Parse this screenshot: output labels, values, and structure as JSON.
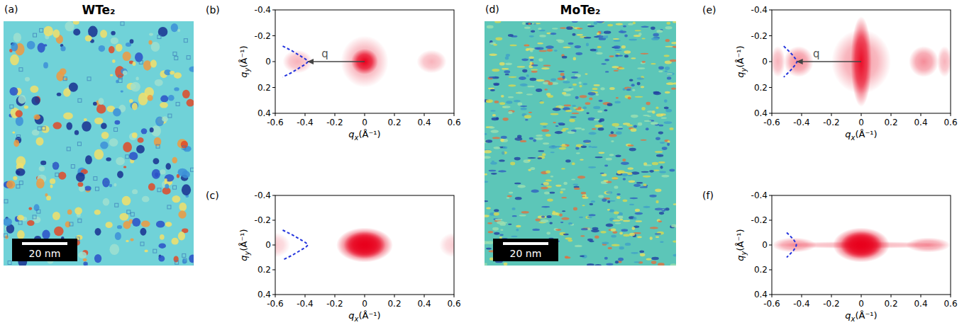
{
  "chart_data": [
    {
      "type": "image",
      "panel": "(a)",
      "title": "WTe₂",
      "scale_bar_label": "20 nm"
    },
    {
      "type": "heatmap",
      "panel": "(b)",
      "xlabel": "qx(Å⁻¹)",
      "ylabel": "qy(Å⁻¹)",
      "xlim": [
        -0.6,
        0.6
      ],
      "ylim": [
        0.4,
        -0.4
      ],
      "xticks": [
        -0.6,
        -0.4,
        -0.2,
        0,
        0.2,
        0.4,
        0.6
      ],
      "yticks": [
        -0.4,
        -0.2,
        0,
        0.2,
        0.4
      ],
      "spots": [
        {
          "x": 0,
          "y": 0,
          "rx": 0.09,
          "ry": 0.1,
          "intensity": 1
        },
        {
          "x": 0,
          "y": 0,
          "rx": 0.16,
          "ry": 0.2,
          "intensity": 0.35
        },
        {
          "x": -0.45,
          "y": 0,
          "rx": 0.1,
          "ry": 0.09,
          "intensity": 0.3
        },
        {
          "x": 0.45,
          "y": 0,
          "rx": 0.1,
          "ry": 0.09,
          "intensity": 0.3
        }
      ],
      "curve": {
        "x": [
          -0.55,
          -0.49,
          -0.44,
          -0.395,
          -0.38,
          -0.395,
          -0.44,
          -0.49,
          -0.55
        ],
        "y": [
          -0.12,
          -0.085,
          -0.05,
          -0.018,
          0,
          0.018,
          0.05,
          0.085,
          0.12
        ]
      },
      "arrow": {
        "x0": 0,
        "y0": 0,
        "x1": -0.38,
        "y1": 0,
        "label": "q"
      }
    },
    {
      "type": "heatmap",
      "panel": "(c)",
      "xlabel": "qx(Å⁻¹)",
      "ylabel": "qy(Å⁻¹)",
      "xlim": [
        -0.6,
        0.6
      ],
      "ylim": [
        0.4,
        -0.4
      ],
      "xticks": [
        -0.6,
        -0.4,
        -0.2,
        0,
        0.2,
        0.4,
        0.6
      ],
      "yticks": [
        -0.4,
        -0.2,
        0,
        0.2,
        0.4
      ],
      "spots": [
        {
          "x": 0,
          "y": 0,
          "rx": 0.19,
          "ry": 0.14,
          "intensity": 1
        },
        {
          "x": 0,
          "y": 0,
          "rx": 0.14,
          "ry": 0.11,
          "intensity": 1
        },
        {
          "x": -0.6,
          "y": 0,
          "rx": 0.1,
          "ry": 0.1,
          "intensity": 0.2
        },
        {
          "x": 0.6,
          "y": 0,
          "rx": 0.1,
          "ry": 0.1,
          "intensity": 0.2
        }
      ],
      "curve": {
        "x": [
          -0.55,
          -0.49,
          -0.44,
          -0.395,
          -0.38,
          -0.395,
          -0.44,
          -0.49,
          -0.55
        ],
        "y": [
          -0.12,
          -0.085,
          -0.05,
          -0.018,
          0,
          0.018,
          0.05,
          0.085,
          0.12
        ]
      }
    },
    {
      "type": "image",
      "panel": "(d)",
      "title": "MoTe₂",
      "scale_bar_label": "20 nm"
    },
    {
      "type": "heatmap",
      "panel": "(e)",
      "xlabel": "qx(Å⁻¹)",
      "ylabel": "qy(Å⁻¹)",
      "xlim": [
        -0.6,
        0.6
      ],
      "ylim": [
        0.4,
        -0.4
      ],
      "xticks": [
        -0.6,
        -0.4,
        -0.2,
        0,
        0.2,
        0.4,
        0.6
      ],
      "yticks": [
        -0.4,
        -0.2,
        0,
        0.2,
        0.4
      ],
      "spots": [
        {
          "x": 0,
          "y": 0,
          "rx": 0.07,
          "ry": 0.35,
          "intensity": 0.9
        },
        {
          "x": 0,
          "y": 0,
          "rx": 0.2,
          "ry": 0.25,
          "intensity": 0.4
        },
        {
          "x": -0.42,
          "y": 0,
          "rx": 0.1,
          "ry": 0.12,
          "intensity": 0.45
        },
        {
          "x": 0.42,
          "y": 0,
          "rx": 0.1,
          "ry": 0.12,
          "intensity": 0.45
        },
        {
          "x": -0.56,
          "y": 0,
          "rx": 0.05,
          "ry": 0.12,
          "intensity": 0.3
        },
        {
          "x": 0.56,
          "y": 0,
          "rx": 0.05,
          "ry": 0.12,
          "intensity": 0.3
        }
      ],
      "curve": {
        "x": [
          -0.52,
          -0.485,
          -0.46,
          -0.44,
          -0.43,
          -0.44,
          -0.46,
          -0.485,
          -0.52
        ],
        "y": [
          -0.12,
          -0.08,
          -0.05,
          -0.02,
          0,
          0.02,
          0.05,
          0.08,
          0.12
        ]
      },
      "arrow": {
        "x0": 0,
        "y0": 0,
        "x1": -0.43,
        "y1": 0,
        "label": "q"
      }
    },
    {
      "type": "heatmap",
      "panel": "(f)",
      "xlabel": "qx(Å⁻¹)",
      "ylabel": "qy(Å⁻¹)",
      "xlim": [
        -0.6,
        0.6
      ],
      "ylim": [
        0.4,
        -0.4
      ],
      "xticks": [
        -0.6,
        -0.4,
        -0.2,
        0,
        0.2,
        0.4,
        0.6
      ],
      "yticks": [
        -0.4,
        -0.2,
        0,
        0.2,
        0.4
      ],
      "spots": [
        {
          "x": 0,
          "y": 0,
          "rx": 0.19,
          "ry": 0.14,
          "intensity": 1
        },
        {
          "x": 0,
          "y": 0,
          "rx": 0.14,
          "ry": 0.11,
          "intensity": 1
        },
        {
          "x": -0.45,
          "y": 0,
          "rx": 0.15,
          "ry": 0.06,
          "intensity": 0.4
        },
        {
          "x": 0.45,
          "y": 0,
          "rx": 0.15,
          "ry": 0.06,
          "intensity": 0.4
        },
        {
          "x": 0,
          "y": 0,
          "rx": 0.6,
          "ry": 0.03,
          "intensity": 0.3
        }
      ],
      "curve": {
        "x": [
          -0.5,
          -0.475,
          -0.455,
          -0.44,
          -0.435,
          -0.44,
          -0.455,
          -0.475,
          -0.5
        ],
        "y": [
          -0.1,
          -0.07,
          -0.045,
          -0.018,
          0,
          0.018,
          0.045,
          0.07,
          0.1
        ]
      }
    }
  ]
}
